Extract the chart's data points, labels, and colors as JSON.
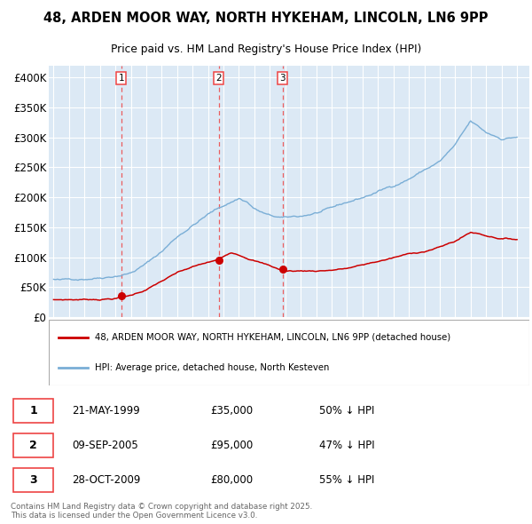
{
  "title1": "48, ARDEN MOOR WAY, NORTH HYKEHAM, LINCOLN, LN6 9PP",
  "title2": "Price paid vs. HM Land Registry's House Price Index (HPI)",
  "legend_red": "48, ARDEN MOOR WAY, NORTH HYKEHAM, LINCOLN, LN6 9PP (detached house)",
  "legend_blue": "HPI: Average price, detached house, North Kesteven",
  "footer": "Contains HM Land Registry data © Crown copyright and database right 2025.\nThis data is licensed under the Open Government Licence v3.0.",
  "transactions": [
    {
      "num": "1",
      "date": "21-MAY-1999",
      "price": "£35,000",
      "pct": "50% ↓ HPI",
      "year_x": 1999.38,
      "price_val": 35000
    },
    {
      "num": "2",
      "date": "09-SEP-2005",
      "price": "£95,000",
      "pct": "47% ↓ HPI",
      "year_x": 2005.69,
      "price_val": 95000
    },
    {
      "num": "3",
      "date": "28-OCT-2009",
      "price": "£80,000",
      "pct": "55% ↓ HPI",
      "year_x": 2009.83,
      "price_val": 80000
    }
  ],
  "ylim": [
    0,
    420000
  ],
  "yticks": [
    0,
    50000,
    100000,
    150000,
    200000,
    250000,
    300000,
    350000,
    400000
  ],
  "ytick_labels": [
    "£0",
    "£50K",
    "£100K",
    "£150K",
    "£200K",
    "£250K",
    "£300K",
    "£350K",
    "£400K"
  ],
  "xlim_min": 1994.7,
  "xlim_max": 2025.8,
  "bg_color": "#dce9f5",
  "red_color": "#cc0000",
  "blue_color": "#7aaed6",
  "grid_color": "#ffffff",
  "dashed_color": "#ee4444",
  "label_box_color": "#ee4444"
}
